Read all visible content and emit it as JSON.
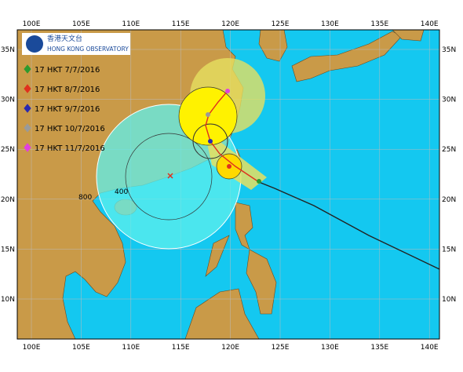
{
  "logo": {
    "name_zh": "香港天文台",
    "name_en": "HONG KONG OBSERVATORY"
  },
  "lon_labels": [
    "100E",
    "105E",
    "110E",
    "115E",
    "120E",
    "125E",
    "130E",
    "135E",
    "140E"
  ],
  "lat_labels": [
    "35N",
    "30N",
    "25N",
    "20N",
    "15N",
    "10N"
  ],
  "legend": [
    {
      "label": "17 HKT 7/7/2016",
      "color": "#2e9a2e"
    },
    {
      "label": "17 HKT 8/7/2016",
      "color": "#e0301e"
    },
    {
      "label": "17 HKT 9/7/2016",
      "color": "#2a2ab0"
    },
    {
      "label": "17 HKT 10/7/2016",
      "color": "#9a9a9a"
    },
    {
      "label": "17 HKT 11/7/2016",
      "color": "#e040e0"
    }
  ],
  "radius_labels": [
    "800",
    "400"
  ]
}
